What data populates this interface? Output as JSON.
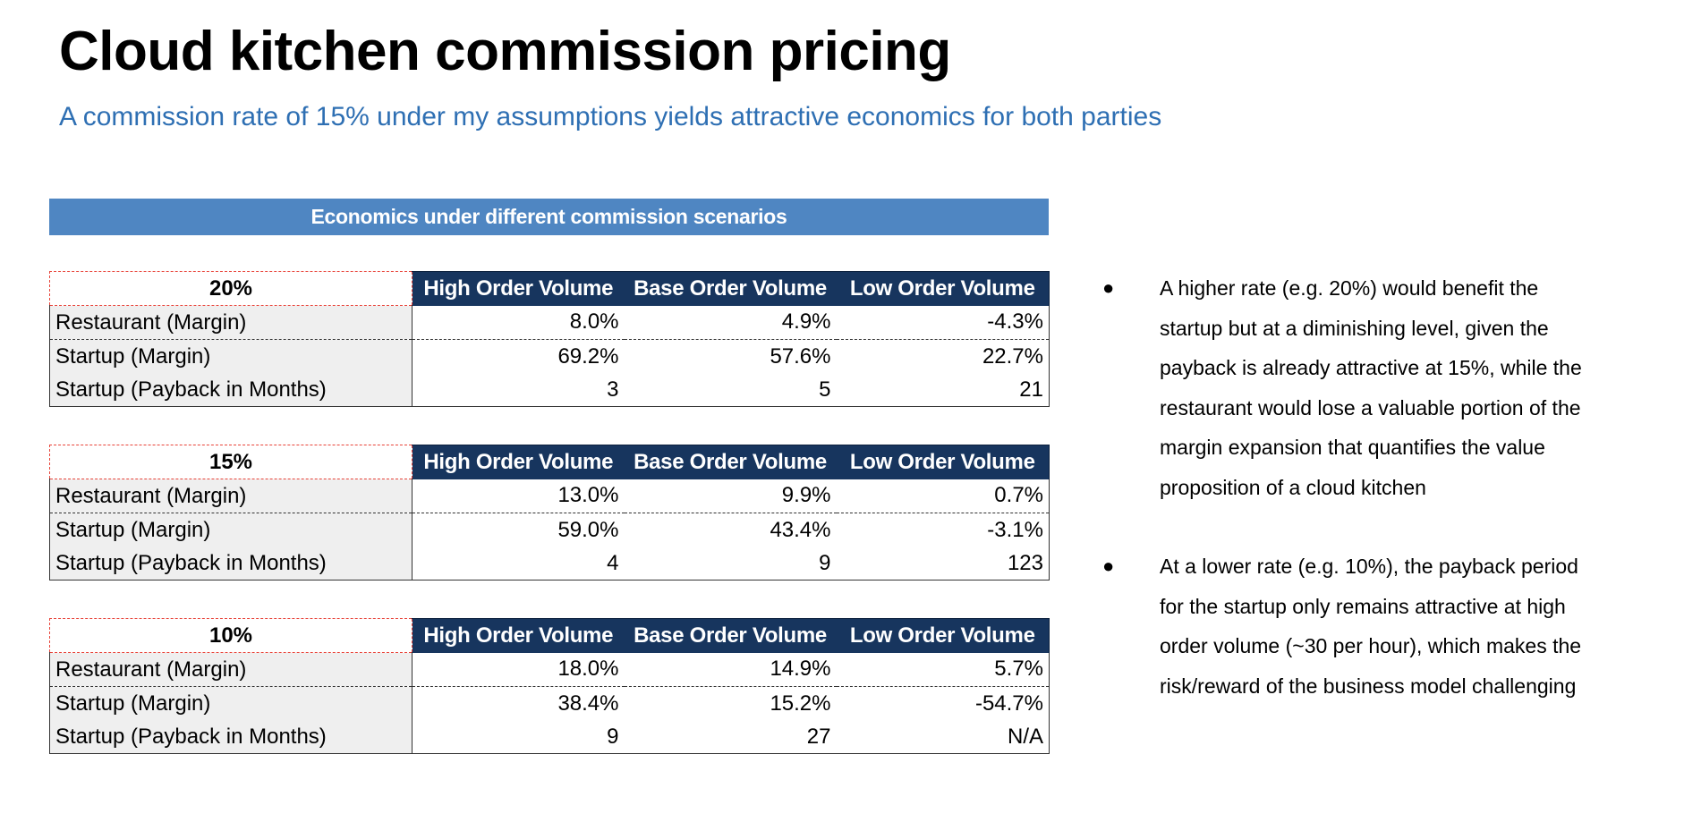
{
  "title": "Cloud kitchen commission pricing",
  "subtitle": "A commission rate of 15% under my assumptions yields attractive economics for both parties",
  "banner": "Economics under different commission scenarios",
  "columns": [
    "High Order Volume",
    "Base Order Volume",
    "Low Order Volume"
  ],
  "scenarios": [
    {
      "rate": "20%",
      "rows": [
        {
          "label": "Restaurant (Margin)",
          "values": [
            "8.0%",
            "4.9%",
            "-4.3%"
          ]
        },
        {
          "label": "Startup (Margin)",
          "values": [
            "69.2%",
            "57.6%",
            "22.7%"
          ]
        },
        {
          "label": "Startup (Payback in Months)",
          "values": [
            "3",
            "5",
            "21"
          ]
        }
      ]
    },
    {
      "rate": "15%",
      "rows": [
        {
          "label": "Restaurant (Margin)",
          "values": [
            "13.0%",
            "9.9%",
            "0.7%"
          ]
        },
        {
          "label": "Startup (Margin)",
          "values": [
            "59.0%",
            "43.4%",
            "-3.1%"
          ]
        },
        {
          "label": "Startup (Payback in Months)",
          "values": [
            "4",
            "9",
            "123"
          ]
        }
      ]
    },
    {
      "rate": "10%",
      "rows": [
        {
          "label": "Restaurant (Margin)",
          "values": [
            "18.0%",
            "14.9%",
            "5.7%"
          ]
        },
        {
          "label": "Startup (Margin)",
          "values": [
            "38.4%",
            "15.2%",
            "-54.7%"
          ]
        },
        {
          "label": "Startup (Payback in Months)",
          "values": [
            "9",
            "27",
            "N/A"
          ]
        }
      ]
    }
  ],
  "bullets": [
    "A higher rate (e.g. 20%) would benefit the startup but at a diminishing level, given the payback is already attractive at 15%, while the restaurant would lose a valuable portion of the margin expansion that quantifies the value proposition of a cloud kitchen",
    "At a lower rate (e.g. 10%), the payback period for the startup only remains attractive at high order volume (~30 per hour), which makes the risk/reward of the business model challenging"
  ],
  "bullet_symbol": "●",
  "colors": {
    "accent_blue": "#2e6fb3",
    "banner_blue": "#4f86c2",
    "header_navy": "#17355e",
    "rate_border_red": "#e8443a",
    "label_gray": "#efefef"
  }
}
